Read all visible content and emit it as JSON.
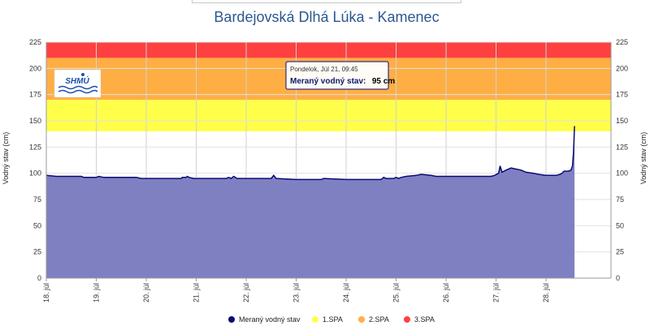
{
  "chart_data": {
    "type": "area",
    "title": "Bardejovská Dlhá Lúka - Kamenec",
    "ylabel_left": "Vodný stav (cm)",
    "ylabel_right": "Vodný stav (cm)",
    "ylim": [
      0,
      225
    ],
    "yticks": [
      "0",
      "25",
      "50",
      "75",
      "100",
      "125",
      "150",
      "175",
      "200",
      "225"
    ],
    "xlim": [
      18.0,
      29.3
    ],
    "xticks": [
      {
        "x": 18,
        "label": "18. júl"
      },
      {
        "x": 19,
        "label": "19. júl"
      },
      {
        "x": 20,
        "label": "20. júl"
      },
      {
        "x": 21,
        "label": "21. júl"
      },
      {
        "x": 22,
        "label": "22. júl"
      },
      {
        "x": 23,
        "label": "23. júl"
      },
      {
        "x": 24,
        "label": "24. júl"
      },
      {
        "x": 25,
        "label": "25. júl"
      },
      {
        "x": 26,
        "label": "26. júl"
      },
      {
        "x": 27,
        "label": "27. júl"
      },
      {
        "x": 28,
        "label": "28. júl"
      }
    ],
    "bands": [
      {
        "name": "1.SPA",
        "from": 140,
        "to": 170,
        "color": "#ffff4a"
      },
      {
        "name": "2.SPA",
        "from": 170,
        "to": 210,
        "color": "#ffae44"
      },
      {
        "name": "3.SPA",
        "from": 210,
        "to": 225,
        "color": "#ff4040"
      }
    ],
    "series": [
      {
        "name": "Meraný vodný stav",
        "line_color": "#0b0b73",
        "fill_color": "#7f80c2",
        "points": [
          [
            18.0,
            98
          ],
          [
            18.2,
            97
          ],
          [
            18.7,
            97
          ],
          [
            18.75,
            96
          ],
          [
            19.0,
            96
          ],
          [
            19.05,
            97
          ],
          [
            19.15,
            96
          ],
          [
            19.8,
            96
          ],
          [
            19.9,
            95
          ],
          [
            20.0,
            95
          ],
          [
            20.7,
            95
          ],
          [
            20.72,
            96
          ],
          [
            20.8,
            96
          ],
          [
            20.82,
            97
          ],
          [
            20.86,
            96
          ],
          [
            20.95,
            95
          ],
          [
            21.0,
            95
          ],
          [
            21.6,
            95
          ],
          [
            21.65,
            96
          ],
          [
            21.7,
            95
          ],
          [
            21.75,
            97
          ],
          [
            21.82,
            95
          ],
          [
            22.0,
            95
          ],
          [
            22.5,
            95
          ],
          [
            22.55,
            98
          ],
          [
            22.6,
            95
          ],
          [
            23.0,
            94
          ],
          [
            23.5,
            94
          ],
          [
            23.55,
            95
          ],
          [
            24.0,
            94
          ],
          [
            24.7,
            94
          ],
          [
            24.75,
            96
          ],
          [
            24.8,
            95
          ],
          [
            24.95,
            95
          ],
          [
            25.0,
            96
          ],
          [
            25.05,
            95
          ],
          [
            25.1,
            96
          ],
          [
            25.2,
            97
          ],
          [
            25.4,
            98
          ],
          [
            25.5,
            99
          ],
          [
            25.7,
            98
          ],
          [
            25.8,
            97
          ],
          [
            26.0,
            97
          ],
          [
            26.5,
            97
          ],
          [
            26.9,
            97
          ],
          [
            26.97,
            98
          ],
          [
            27.05,
            100
          ],
          [
            27.08,
            107
          ],
          [
            27.12,
            101
          ],
          [
            27.2,
            103
          ],
          [
            27.3,
            105
          ],
          [
            27.4,
            104
          ],
          [
            27.5,
            103
          ],
          [
            27.6,
            101
          ],
          [
            27.75,
            100
          ],
          [
            27.85,
            99
          ],
          [
            28.0,
            98
          ],
          [
            28.2,
            98
          ],
          [
            28.28,
            99
          ],
          [
            28.32,
            100
          ],
          [
            28.36,
            102
          ],
          [
            28.45,
            102
          ],
          [
            28.5,
            103
          ],
          [
            28.53,
            107
          ],
          [
            28.55,
            120
          ],
          [
            28.57,
            145
          ]
        ]
      }
    ],
    "legend": [
      {
        "label": "Meraný vodný stav",
        "color": "#0b0b73"
      },
      {
        "label": "1.SPA",
        "color": "#ffff4a"
      },
      {
        "label": "2.SPA",
        "color": "#ffae44"
      },
      {
        "label": "3.SPA",
        "color": "#ff4040"
      }
    ],
    "legend_position": "bottom-center",
    "grid": true,
    "tooltip": {
      "date": "Pondelok, Júl 21, 09:45",
      "label": "Meraný vodný stav:",
      "value": "95 cm"
    },
    "logo": {
      "text": "SHMÚ"
    }
  }
}
